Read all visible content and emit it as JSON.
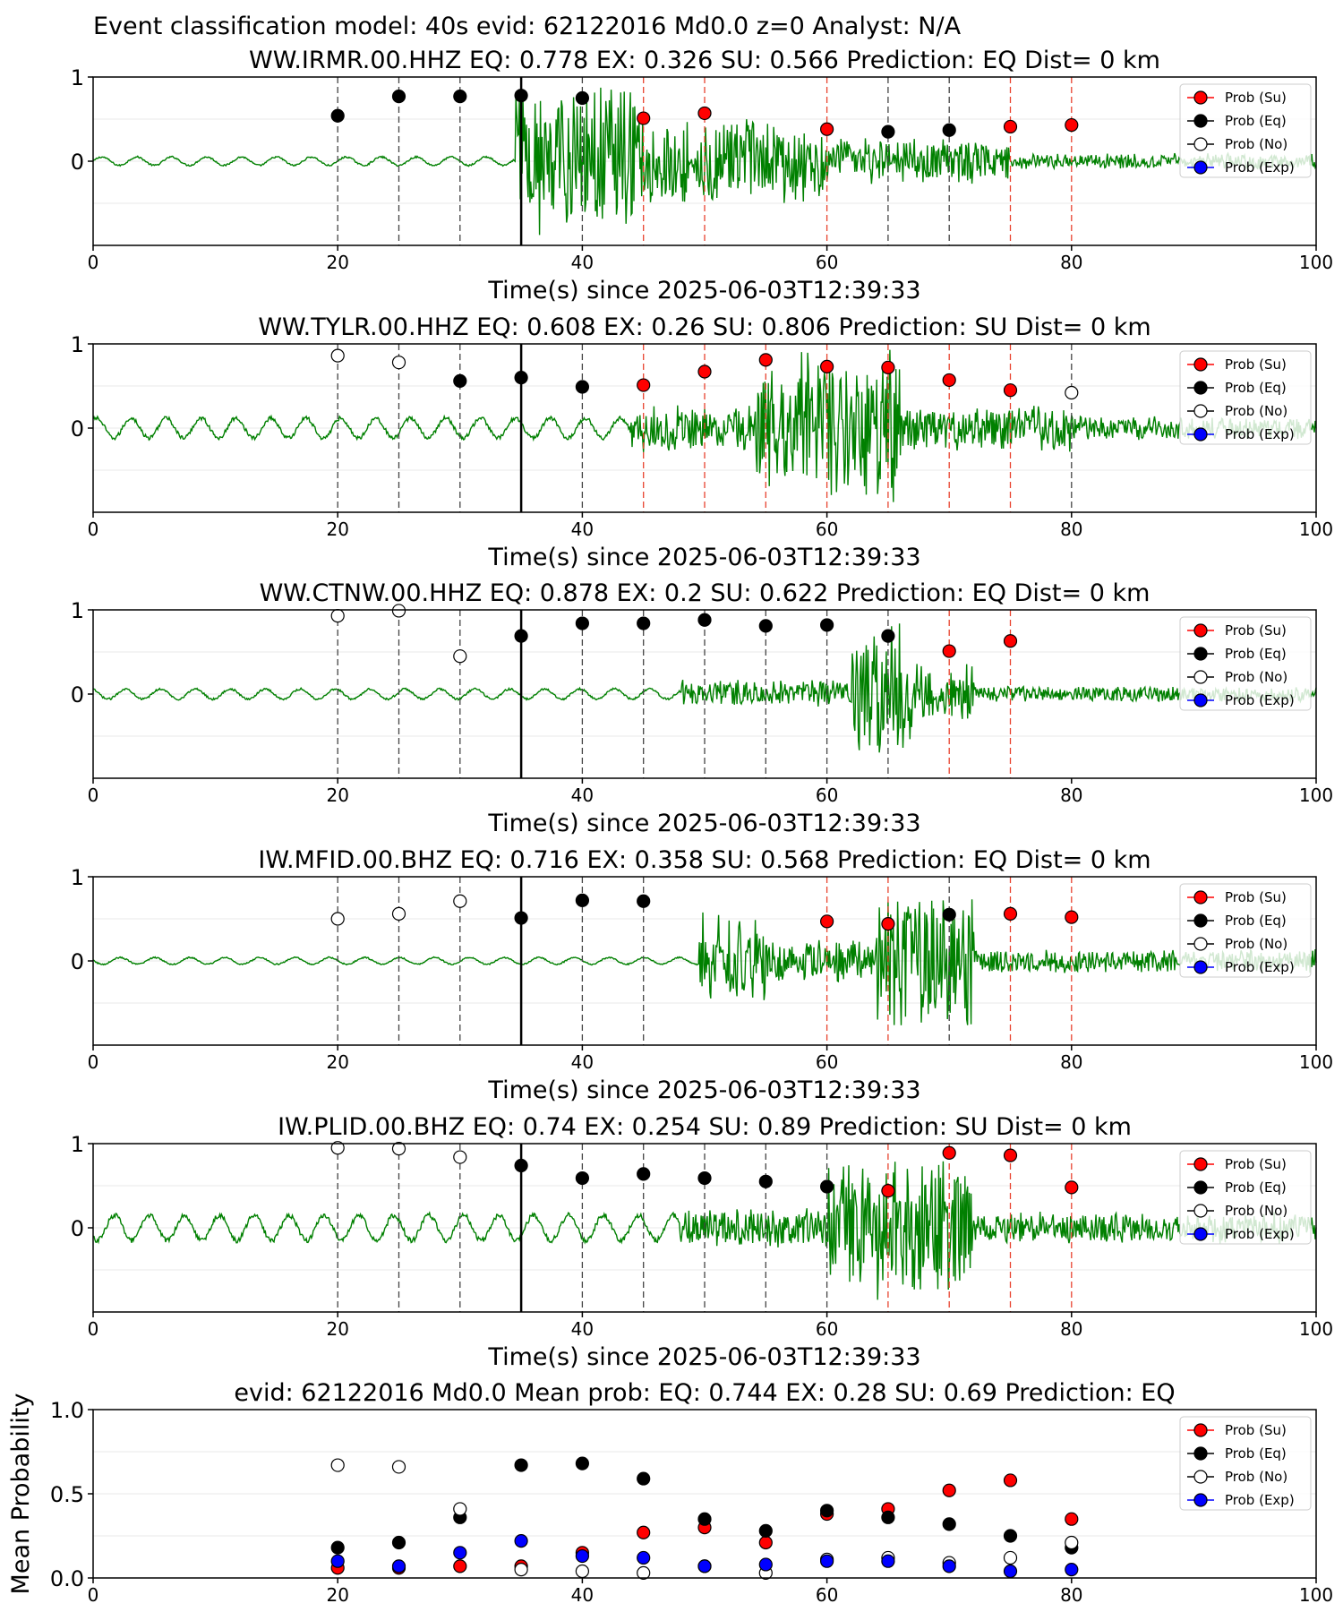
{
  "figure": {
    "suptitle": "Event classification model: 40s evid: 62122016 Md0.0 z=0 Analyst: N/A",
    "xlabel": "Time(s) since 2025-06-03T12:39:33"
  },
  "legend": {
    "entries": [
      {
        "label": "Prob (Su)",
        "color": "#ff0000"
      },
      {
        "label": "Prob (Eq)",
        "color": "#000000"
      },
      {
        "label": "Prob (No)",
        "color": "#ffffff"
      },
      {
        "label": "Prob (Exp)",
        "color": "#0000ff"
      }
    ]
  },
  "colors": {
    "trace": "#008000",
    "su": "#ff0000",
    "eq": "#000000",
    "no": "#ffffff",
    "exp": "#0000ff"
  },
  "chart_data": [
    {
      "type": "scatter",
      "title": "WW.IRMR.00.HHZ   EQ: 0.778  EX: 0.326  SU: 0.566   Prediction: EQ    Dist= 0 km",
      "xlabel": "Time(s) since 2025-06-03T12:39:33",
      "xlim": [
        0,
        100
      ],
      "ylim": [
        -1,
        1
      ],
      "xticks": [
        "0",
        "20",
        "40",
        "60",
        "80",
        "100"
      ],
      "yticks": [
        "1",
        "0"
      ],
      "pick_time": 35,
      "trace": {
        "onset": 34.5,
        "segments": [
          {
            "from": 0,
            "to": 34.5,
            "amp": 0.05
          },
          {
            "from": 34.5,
            "to": 45,
            "amp": 0.95
          },
          {
            "from": 45,
            "to": 60,
            "amp": 0.55
          },
          {
            "from": 60,
            "to": 75,
            "amp": 0.3
          },
          {
            "from": 75,
            "to": 100,
            "amp": 0.1
          }
        ]
      },
      "points": [
        {
          "t": 20,
          "p": 0.54,
          "cls": "eq"
        },
        {
          "t": 25,
          "p": 0.77,
          "cls": "eq"
        },
        {
          "t": 30,
          "p": 0.77,
          "cls": "eq"
        },
        {
          "t": 35,
          "p": 0.78,
          "cls": "eq"
        },
        {
          "t": 40,
          "p": 0.75,
          "cls": "eq"
        },
        {
          "t": 45,
          "p": 0.51,
          "cls": "su"
        },
        {
          "t": 50,
          "p": 0.57,
          "cls": "su"
        },
        {
          "t": 60,
          "p": 0.38,
          "cls": "su"
        },
        {
          "t": 65,
          "p": 0.35,
          "cls": "eq"
        },
        {
          "t": 70,
          "p": 0.37,
          "cls": "eq"
        },
        {
          "t": 75,
          "p": 0.41,
          "cls": "su"
        },
        {
          "t": 80,
          "p": 0.43,
          "cls": "su"
        }
      ]
    },
    {
      "type": "scatter",
      "title": "WW.TYLR.00.HHZ   EQ: 0.608  EX: 0.26  SU: 0.806   Prediction: SU    Dist= 0 km",
      "xlabel": "Time(s) since 2025-06-03T12:39:33",
      "xlim": [
        0,
        100
      ],
      "ylim": [
        -1,
        1
      ],
      "xticks": [
        "0",
        "20",
        "40",
        "60",
        "80",
        "100"
      ],
      "yticks": [
        "1",
        "0"
      ],
      "pick_time": 35,
      "trace": {
        "onset": 44,
        "segments": [
          {
            "from": 0,
            "to": 44,
            "amp": 0.12
          },
          {
            "from": 44,
            "to": 54,
            "amp": 0.3
          },
          {
            "from": 54,
            "to": 66,
            "amp": 0.95
          },
          {
            "from": 66,
            "to": 80,
            "amp": 0.3
          },
          {
            "from": 80,
            "to": 100,
            "amp": 0.15
          }
        ]
      },
      "points": [
        {
          "t": 20,
          "p": 0.86,
          "cls": "no"
        },
        {
          "t": 25,
          "p": 0.78,
          "cls": "no"
        },
        {
          "t": 30,
          "p": 0.56,
          "cls": "eq"
        },
        {
          "t": 35,
          "p": 0.6,
          "cls": "eq"
        },
        {
          "t": 40,
          "p": 0.49,
          "cls": "eq"
        },
        {
          "t": 45,
          "p": 0.51,
          "cls": "su"
        },
        {
          "t": 50,
          "p": 0.67,
          "cls": "su"
        },
        {
          "t": 55,
          "p": 0.81,
          "cls": "su"
        },
        {
          "t": 60,
          "p": 0.73,
          "cls": "su"
        },
        {
          "t": 65,
          "p": 0.72,
          "cls": "su"
        },
        {
          "t": 70,
          "p": 0.57,
          "cls": "su"
        },
        {
          "t": 75,
          "p": 0.45,
          "cls": "su"
        },
        {
          "t": 80,
          "p": 0.42,
          "cls": "no"
        }
      ]
    },
    {
      "type": "scatter",
      "title": "WW.CTNW.00.HHZ   EQ: 0.878  EX: 0.2  SU: 0.622   Prediction: EQ    Dist= 0 km",
      "xlabel": "Time(s) since 2025-06-03T12:39:33",
      "xlim": [
        0,
        100
      ],
      "ylim": [
        -1,
        1
      ],
      "xticks": [
        "0",
        "20",
        "40",
        "60",
        "80",
        "100"
      ],
      "yticks": [
        "1",
        "0"
      ],
      "pick_time": 35,
      "trace": {
        "onset": 48,
        "segments": [
          {
            "from": 0,
            "to": 48,
            "amp": 0.06
          },
          {
            "from": 48,
            "to": 62,
            "amp": 0.18
          },
          {
            "from": 62,
            "to": 67,
            "amp": 0.95
          },
          {
            "from": 67,
            "to": 72,
            "amp": 0.4
          },
          {
            "from": 72,
            "to": 100,
            "amp": 0.1
          }
        ]
      },
      "points": [
        {
          "t": 20,
          "p": 0.93,
          "cls": "no"
        },
        {
          "t": 25,
          "p": 0.99,
          "cls": "no"
        },
        {
          "t": 30,
          "p": 0.45,
          "cls": "no"
        },
        {
          "t": 35,
          "p": 0.69,
          "cls": "eq"
        },
        {
          "t": 40,
          "p": 0.84,
          "cls": "eq"
        },
        {
          "t": 45,
          "p": 0.84,
          "cls": "eq"
        },
        {
          "t": 50,
          "p": 0.88,
          "cls": "eq"
        },
        {
          "t": 55,
          "p": 0.81,
          "cls": "eq"
        },
        {
          "t": 60,
          "p": 0.82,
          "cls": "eq"
        },
        {
          "t": 65,
          "p": 0.69,
          "cls": "eq"
        },
        {
          "t": 70,
          "p": 0.51,
          "cls": "su"
        },
        {
          "t": 75,
          "p": 0.63,
          "cls": "su"
        }
      ]
    },
    {
      "type": "scatter",
      "title": "IW.MFID.00.BHZ   EQ: 0.716  EX: 0.358  SU: 0.568   Prediction: EQ    Dist= 0 km",
      "xlabel": "Time(s) since 2025-06-03T12:39:33",
      "xlim": [
        0,
        100
      ],
      "ylim": [
        -1,
        1
      ],
      "xticks": [
        "0",
        "20",
        "40",
        "60",
        "80",
        "100"
      ],
      "yticks": [
        "1",
        "0"
      ],
      "pick_time": 35,
      "trace": {
        "onset": 49.5,
        "segments": [
          {
            "from": 0,
            "to": 49.5,
            "amp": 0.04
          },
          {
            "from": 49.5,
            "to": 55,
            "amp": 0.6
          },
          {
            "from": 55,
            "to": 64,
            "amp": 0.3
          },
          {
            "from": 64,
            "to": 72,
            "amp": 0.9
          },
          {
            "from": 72,
            "to": 100,
            "amp": 0.15
          }
        ]
      },
      "points": [
        {
          "t": 20,
          "p": 0.5,
          "cls": "no"
        },
        {
          "t": 25,
          "p": 0.56,
          "cls": "no"
        },
        {
          "t": 30,
          "p": 0.71,
          "cls": "no"
        },
        {
          "t": 35,
          "p": 0.51,
          "cls": "eq"
        },
        {
          "t": 40,
          "p": 0.72,
          "cls": "eq"
        },
        {
          "t": 45,
          "p": 0.71,
          "cls": "eq"
        },
        {
          "t": 60,
          "p": 0.47,
          "cls": "su"
        },
        {
          "t": 65,
          "p": 0.44,
          "cls": "su"
        },
        {
          "t": 70,
          "p": 0.55,
          "cls": "eq"
        },
        {
          "t": 75,
          "p": 0.56,
          "cls": "su"
        },
        {
          "t": 80,
          "p": 0.52,
          "cls": "su"
        }
      ]
    },
    {
      "type": "scatter",
      "title": "IW.PLID.00.BHZ   EQ: 0.74  EX: 0.254  SU: 0.89   Prediction: SU    Dist= 0 km",
      "xlabel": "Time(s) since 2025-06-03T12:39:33",
      "xlim": [
        0,
        100
      ],
      "ylim": [
        -1,
        1
      ],
      "xticks": [
        "0",
        "20",
        "40",
        "60",
        "80",
        "100"
      ],
      "yticks": [
        "1",
        "0"
      ],
      "pick_time": 35,
      "trace": {
        "onset": 48,
        "segments": [
          {
            "from": 0,
            "to": 48,
            "amp": 0.15
          },
          {
            "from": 48,
            "to": 60,
            "amp": 0.25
          },
          {
            "from": 60,
            "to": 72,
            "amp": 0.9
          },
          {
            "from": 72,
            "to": 100,
            "amp": 0.2
          }
        ]
      },
      "points": [
        {
          "t": 20,
          "p": 0.95,
          "cls": "no"
        },
        {
          "t": 25,
          "p": 0.94,
          "cls": "no"
        },
        {
          "t": 30,
          "p": 0.84,
          "cls": "no"
        },
        {
          "t": 35,
          "p": 0.74,
          "cls": "eq"
        },
        {
          "t": 40,
          "p": 0.59,
          "cls": "eq"
        },
        {
          "t": 45,
          "p": 0.64,
          "cls": "eq"
        },
        {
          "t": 50,
          "p": 0.59,
          "cls": "eq"
        },
        {
          "t": 55,
          "p": 0.55,
          "cls": "eq"
        },
        {
          "t": 60,
          "p": 0.49,
          "cls": "eq"
        },
        {
          "t": 65,
          "p": 0.44,
          "cls": "su"
        },
        {
          "t": 70,
          "p": 0.89,
          "cls": "su"
        },
        {
          "t": 75,
          "p": 0.86,
          "cls": "su"
        },
        {
          "t": 80,
          "p": 0.48,
          "cls": "su"
        }
      ]
    },
    {
      "type": "scatter",
      "title": "evid: 62122016  Md0.0   Mean prob:   EQ: 0.744  EX: 0.28  SU: 0.69   Prediction: EQ",
      "ylabel": "Mean Probability",
      "xlim": [
        0,
        100
      ],
      "ylim": [
        0,
        1
      ],
      "xticks": [
        "0",
        "20",
        "40",
        "60",
        "80",
        "100"
      ],
      "yticks": [
        "1.0",
        "0.5",
        "0.0"
      ],
      "x": [
        20,
        25,
        30,
        35,
        40,
        45,
        50,
        55,
        60,
        65,
        70,
        75,
        80
      ],
      "series": [
        {
          "name": "Prob (Su)",
          "cls": "su",
          "values": [
            0.06,
            0.06,
            0.07,
            0.07,
            0.15,
            0.27,
            0.3,
            0.21,
            0.38,
            0.41,
            0.52,
            0.58,
            0.35
          ]
        },
        {
          "name": "Prob (Eq)",
          "cls": "eq",
          "values": [
            0.18,
            0.21,
            0.36,
            0.67,
            0.68,
            0.59,
            0.35,
            0.28,
            0.4,
            0.36,
            0.32,
            0.25,
            0.18
          ]
        },
        {
          "name": "Prob (No)",
          "cls": "no",
          "values": [
            0.67,
            0.66,
            0.41,
            0.05,
            0.04,
            0.03,
            0.07,
            0.03,
            0.11,
            0.12,
            0.09,
            0.12,
            0.21
          ]
        },
        {
          "name": "Prob (Exp)",
          "cls": "exp",
          "values": [
            0.1,
            0.07,
            0.15,
            0.22,
            0.13,
            0.12,
            0.07,
            0.08,
            0.1,
            0.1,
            0.07,
            0.04,
            0.05
          ]
        }
      ]
    }
  ]
}
